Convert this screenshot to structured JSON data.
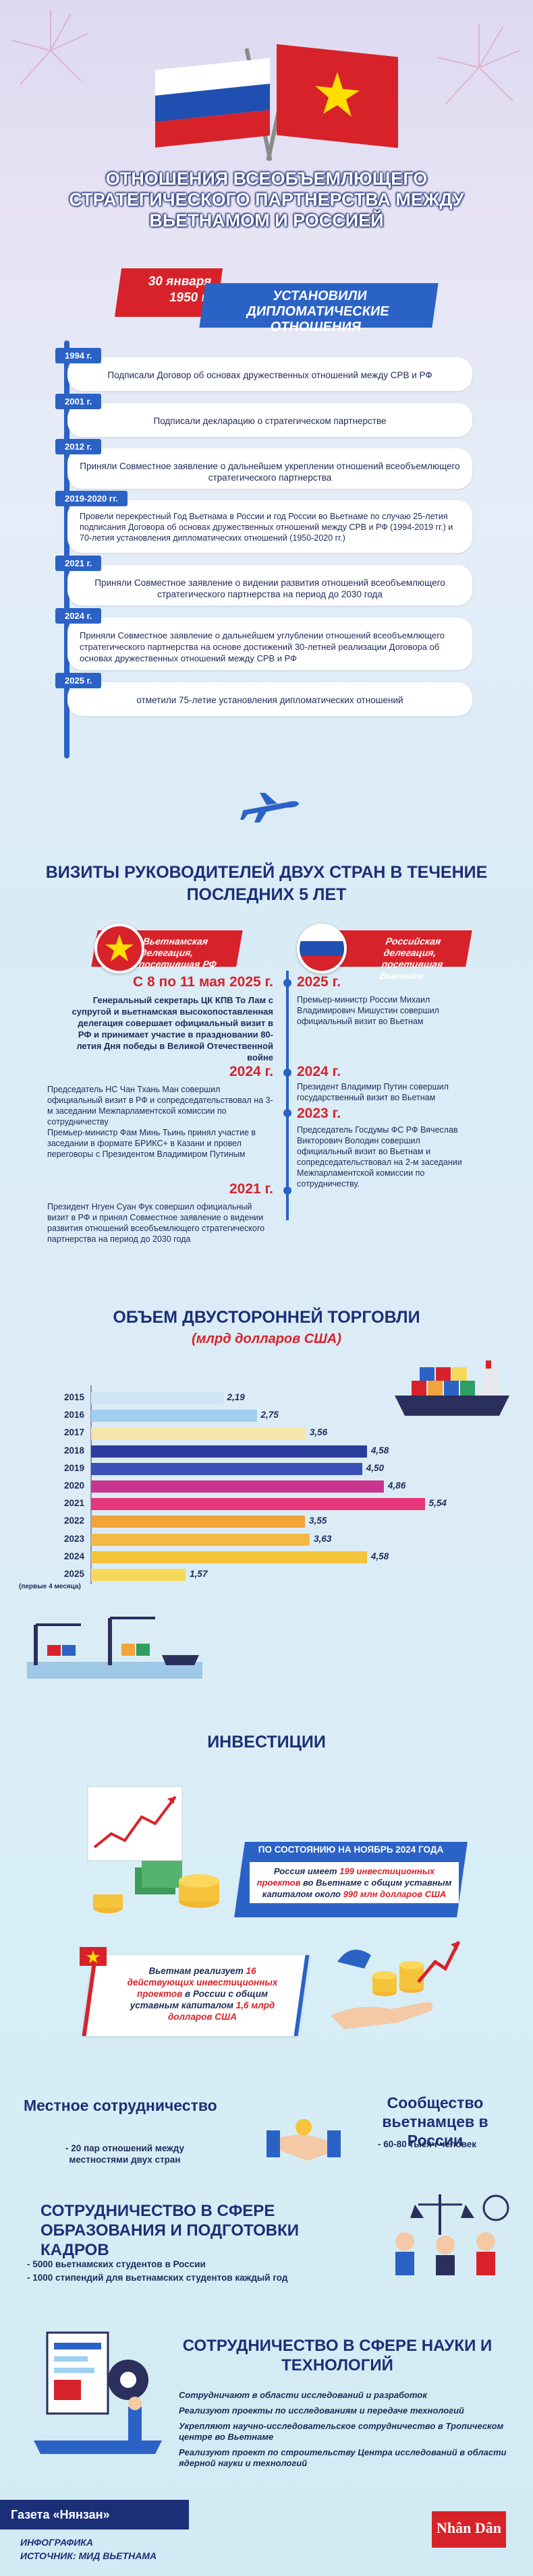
{
  "header": {
    "title": "ОТНОШЕНИЯ ВСЕОБЪЕМЛЮЩЕГО СТРАТЕГИЧЕСКОГО ПАРТНЕРСТВА МЕЖДУ ВЬЕТНАМОМ И РОССИЕЙ",
    "date": "30 января 1950 г.",
    "established": "УСТАНОВИЛИ ДИПЛОМАТИЧЕСКИЕ ОТНОШЕНИЯ"
  },
  "timeline": [
    {
      "year": "1994 г.",
      "text": "Подписали Договор об основах дружественных отношений между СРВ и РФ"
    },
    {
      "year": "2001 г.",
      "text": "Подписали декларацию о стратегическом партнерстве"
    },
    {
      "year": "2012 г.",
      "text": "Приняли Совместное заявление о дальнейшем укреплении отношений всеобъемлющего стратегического партнерства"
    },
    {
      "year": "2019-2020 гг.",
      "text": "Провели перекрестный Год Вьетнама в России и год России во Вьетнаме по случаю 25-летия подписания Договора об основах дружественных отношений между СРВ и РФ (1994-2019 гг.) и 70-летия установления дипломатических отношений (1950-2020 гг.)"
    },
    {
      "year": "2021 г.",
      "text": "Приняли Совместное заявление о видении развития отношений всеобъемлющего стратегического партнерства на период до 2030 года"
    },
    {
      "year": "2024 г.",
      "text": "Приняли Совместное заявление о дальнейшем углублении отношений всеобъемлющего стратегического партнерства на основе достижений 30-летней реализации Договора об основах дружественных отношений между СРВ и РФ"
    },
    {
      "year": "2025 г.",
      "text": "отметили 75-летие установления дипломатических отношений"
    }
  ],
  "visits": {
    "title": "ВИЗИТЫ РУКОВОДИТЕЛЕЙ ДВУХ СТРАН В ТЕЧЕНИЕ ПОСЛЕДНИХ 5 ЛЕТ",
    "vn_label": "Вьетнамская делегация, посетившая РФ",
    "ru_label": "Российская делегация, посетившая Вьетнам",
    "vn": [
      {
        "date": "С 8 по 11 мая 2025 г.",
        "text": "Генеральный секретарь ЦК КПВ То Лам с супругой и вьетнамская высокопоставленная делегация совершает официальный визит в РФ и принимает участие в праздновании 80-летия Дня победы в Великой Отечественной войне"
      },
      {
        "date": "2024 г.",
        "text": "Председатель НС Чан Тхань Ман совершил официальный визит в РФ и сопредседательствовал на 3-м заседании Межпарламентской комиссии по сотрудничеству\nПремьер-министр Фам Минь Тьинь принял участие в заседании в формате БРИКС+ в Казани и провел переговоры с Президентом Владимиром Путиным"
      },
      {
        "date": "2021 г.",
        "text": "Президент Нгуен Суан Фук совершил официальный визит в РФ и принял Совместное заявление о видении развития отношений всеобъемлющего стратегического партнерства на период до 2030 года"
      }
    ],
    "ru": [
      {
        "date": "2025 г.",
        "text": "Премьер-министр России Михаил Владимирович Мишустин совершил официальный визит во Вьетнам"
      },
      {
        "date": "2024 г.",
        "text": "Президент Владимир Путин совершил государственный визит во Вьетнам"
      },
      {
        "date": "2023 г.",
        "text": "Председатель Госдумы ФС РФ Вячеслав Викторович Володин совершил официальный визит во Вьетнам и сопредседательствовал на 2-м заседании Межпарламентской комиссии по сотрудничеству."
      }
    ]
  },
  "trade": {
    "title": "ОБЪЕМ ДВУСТОРОННЕЙ ТОРГОВЛИ",
    "subtitle": "(млрд долларов США)",
    "note": "(первые 4 месяца)"
  },
  "chart_data": {
    "type": "bar",
    "title": "ОБЪЕМ ДВУСТОРОННЕЙ ТОРГОВЛИ",
    "ylabel": "(млрд долларов США)",
    "categories": [
      "2015",
      "2016",
      "2017",
      "2018",
      "2019",
      "2020",
      "2021",
      "2022",
      "2023",
      "2024",
      "2025"
    ],
    "values": [
      2.19,
      2.75,
      3.56,
      4.58,
      4.5,
      4.86,
      5.54,
      3.55,
      3.63,
      4.58,
      1.57
    ],
    "labels": [
      "2,19",
      "2,75",
      "3,56",
      "4,58",
      "4,50",
      "4,86",
      "5,54",
      "3,55",
      "3,63",
      "4,58",
      "1,57"
    ],
    "colors": [
      "#cfe6f4",
      "#9fd1ee",
      "#f6e5a8",
      "#2b3d9c",
      "#3a4fb7",
      "#c9358e",
      "#e8367a",
      "#f2a33a",
      "#f4b942",
      "#f5c43a",
      "#f6d85a"
    ],
    "value_colors": [
      "#1d2a5a",
      "#1d2a5a",
      "#1d2a5a",
      "#1d2a5a",
      "#1d2a5a",
      "#1d2a5a",
      "#1d2a5a",
      "#1d2a5a",
      "#1d2a5a",
      "#1d2a5a",
      "#1d2a5a"
    ]
  },
  "investments": {
    "title": "ИНВЕСТИЦИИ",
    "ru_head": "ПО СОСТОЯНИЮ НА НОЯБРЬ 2024 ГОДА",
    "ru_text_pre": "Россия имеет ",
    "ru_text_red": "199 инвестиционных проектов",
    "ru_text_mid": " во Вьетнаме с общим уставным капиталом около ",
    "ru_text_red2": "990 млн долларов США",
    "vn_text_pre": "Вьетнам реализует ",
    "vn_text_red": "16 действующих инвестиционных проектов",
    "vn_text_mid": " в России с общим уставным капиталом ",
    "vn_text_red2": "1,6 млрд долларов США"
  },
  "local": {
    "title": "Местное сотрудничество",
    "text": "- 20 пар отношений между местностями двух стран"
  },
  "community": {
    "title": "Сообщество вьетнамцев в России",
    "text": "- 60-80 тысяч человек"
  },
  "education": {
    "title": "СОТРУДНИЧЕСТВО В СФЕРЕ ОБРАЗОВАНИЯ И ПОДГОТОВКИ КАДРОВ",
    "items": [
      "- 5000 вьетнамских студентов в России",
      "- 1000 стипендий для вьетнамских студентов каждый год"
    ]
  },
  "science": {
    "title": "СОТРУДНИЧЕСТВО В СФЕРЕ НАУКИ И ТЕХНОЛОГИЙ",
    "items": [
      "Сотрудничают в области исследований и разработок",
      "Реализуют проекты по исследованиям и передаче технологий",
      "Укрепляют научно-исследовательское сотрудничество в Тропическом центре во Вьетнаме",
      "Реализуют проект по строительству Центра исследований в области ядерной науки и технологий"
    ]
  },
  "footer": {
    "paper": "Газета «Нянзан»",
    "credit1": "ИНФОГРАФИКА",
    "credit2": "ИСТОЧНИК: МИД ВЬЕТНАМА",
    "logo": "Nhân Dân"
  },
  "colors": {
    "blue": "#2b62c6",
    "navy": "#1b2f78",
    "red": "#d8222a"
  }
}
